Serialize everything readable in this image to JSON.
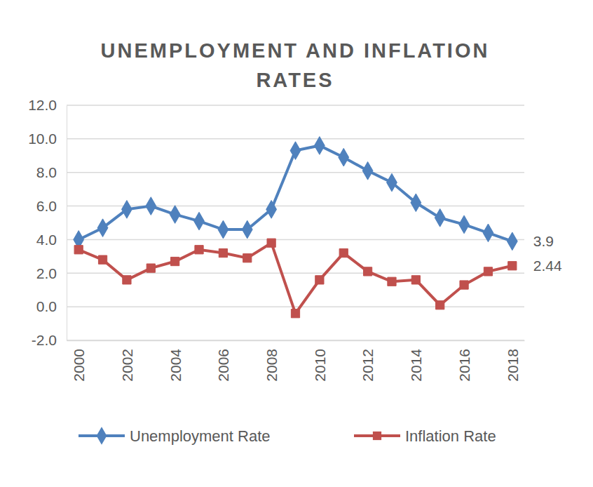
{
  "chart_data": {
    "type": "line",
    "title": "UNEMPLOYMENT AND INFLATION RATES",
    "x": [
      2000,
      2001,
      2002,
      2003,
      2004,
      2005,
      2006,
      2007,
      2008,
      2009,
      2010,
      2011,
      2012,
      2013,
      2014,
      2015,
      2016,
      2017,
      2018
    ],
    "xlim": [
      1999.5,
      2018.5
    ],
    "xticks": [
      2000,
      2002,
      2004,
      2006,
      2008,
      2010,
      2012,
      2014,
      2016,
      2018
    ],
    "ylim": [
      -2,
      12
    ],
    "yticks": [
      {
        "value": -2,
        "label": "-2.0"
      },
      {
        "value": 0,
        "label": "0.0"
      },
      {
        "value": 2,
        "label": "2.0"
      },
      {
        "value": 4,
        "label": "4.0"
      },
      {
        "value": 6,
        "label": "6.0"
      },
      {
        "value": 8,
        "label": "8.0"
      },
      {
        "value": 10,
        "label": "10.0"
      },
      {
        "value": 12,
        "label": "12.0"
      }
    ],
    "grid": true,
    "legend": "bottom",
    "series": [
      {
        "name": "Unemployment Rate",
        "color": "#4f81bd",
        "marker": "diamond",
        "line_style": "solid",
        "values": [
          4.0,
          4.7,
          5.8,
          6.0,
          5.5,
          5.1,
          4.6,
          4.6,
          5.8,
          9.3,
          9.6,
          8.9,
          8.1,
          7.4,
          6.2,
          5.3,
          4.9,
          4.4,
          3.9
        ]
      },
      {
        "name": "Inflation Rate",
        "color": "#c0504d",
        "marker": "square",
        "line_style": "solid",
        "values": [
          3.4,
          2.8,
          1.6,
          2.3,
          2.7,
          3.4,
          3.2,
          2.9,
          3.8,
          -0.4,
          1.6,
          3.2,
          2.1,
          1.5,
          1.6,
          0.1,
          1.3,
          2.1,
          2.44
        ]
      }
    ],
    "annotations": [
      {
        "x": 2018,
        "y": 3.9,
        "text": "3.9"
      },
      {
        "x": 2018,
        "y": 2.44,
        "text": "2.44"
      }
    ]
  }
}
